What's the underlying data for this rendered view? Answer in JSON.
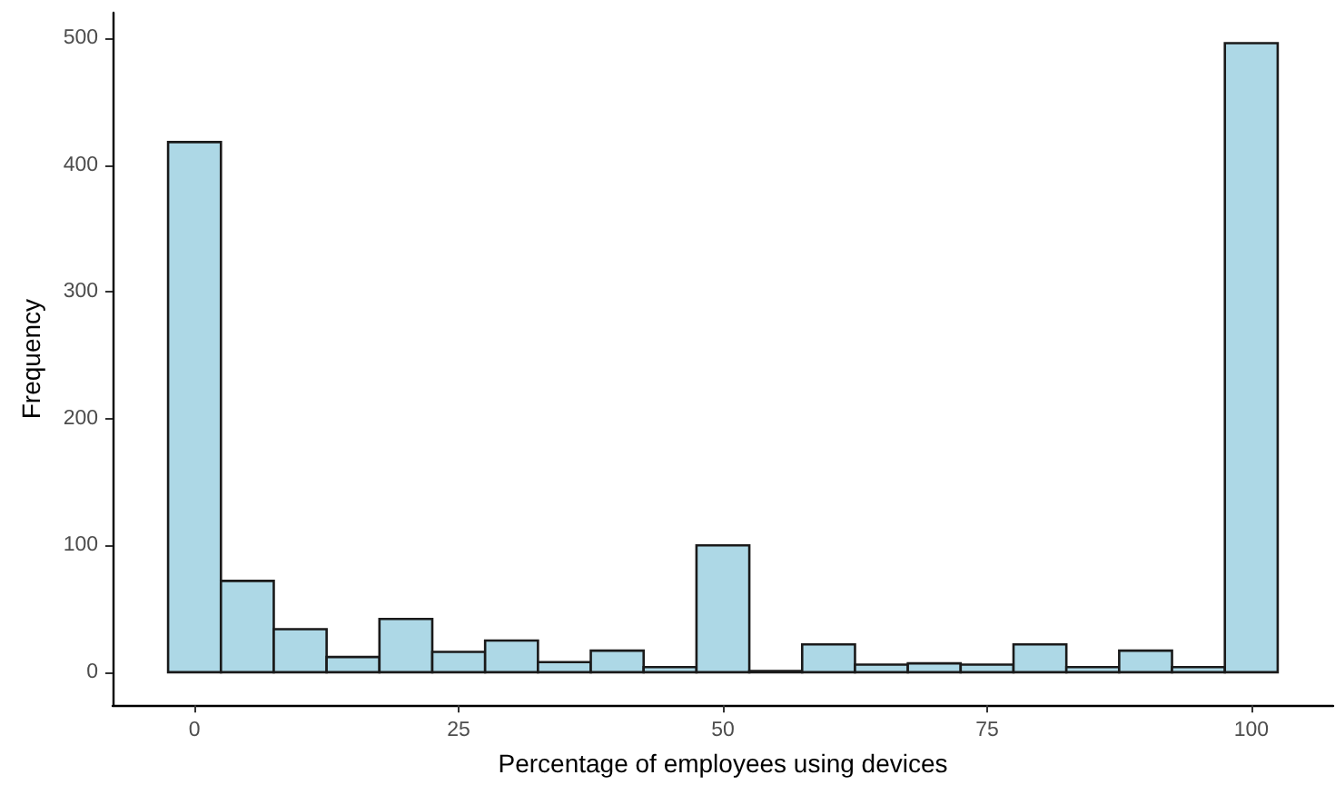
{
  "chart_data": {
    "type": "histogram",
    "xlabel": "Percentage of employees using devices",
    "ylabel": "Frequency",
    "bins": [
      -2.5,
      2.5,
      7.5,
      12.5,
      17.5,
      22.5,
      27.5,
      32.5,
      37.5,
      42.5,
      47.5,
      52.5,
      57.5,
      62.5,
      67.5,
      72.5,
      77.5,
      82.5,
      87.5,
      92.5,
      97.5,
      102.5
    ],
    "values": [
      418,
      72,
      34,
      12,
      42,
      16,
      25,
      8,
      17,
      4,
      100,
      1,
      22,
      6,
      7,
      6,
      22,
      4,
      17,
      4,
      496
    ],
    "color": "#add8e6",
    "xlim": [
      -7.75,
      107.75
    ],
    "xticks": [
      0,
      25,
      50,
      75,
      100
    ],
    "ylim": [
      -26,
      520
    ],
    "yticks": [
      0,
      100,
      200,
      300,
      400,
      500
    ],
    "grid": false
  }
}
